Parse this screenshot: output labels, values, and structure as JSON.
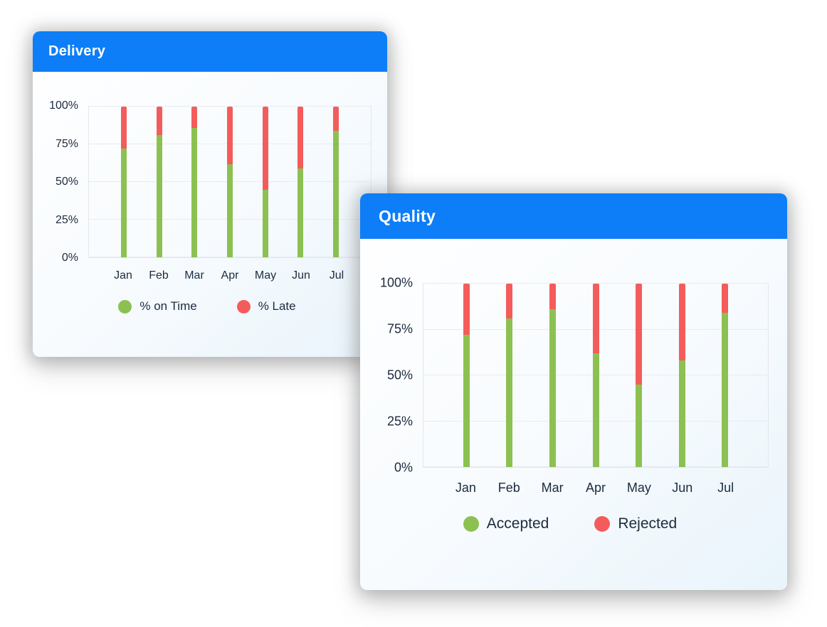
{
  "colors": {
    "header_blue": "#0d7ef7",
    "series_green": "#8cc152",
    "series_red": "#f45c5c",
    "text": "#1c2b3e"
  },
  "chart_data": [
    {
      "type": "bar",
      "stacked": true,
      "title": "Delivery",
      "categories": [
        "Jan",
        "Feb",
        "Mar",
        "Apr",
        "May",
        "Jun",
        "Jul"
      ],
      "series": [
        {
          "name": "% on Time",
          "color": "#8cc152",
          "values": [
            72,
            81,
            86,
            62,
            45,
            59,
            84
          ]
        },
        {
          "name": "% Late",
          "color": "#f45c5c",
          "values": [
            28,
            19,
            14,
            38,
            55,
            41,
            16
          ]
        }
      ],
      "xlabel": "",
      "ylabel": "",
      "ylim": [
        0,
        100
      ],
      "yticks": [
        "0%",
        "25%",
        "50%",
        "75%",
        "100%"
      ],
      "grid": true,
      "legend_position": "bottom"
    },
    {
      "type": "bar",
      "stacked": true,
      "title": "Quality",
      "categories": [
        "Jan",
        "Feb",
        "Mar",
        "Apr",
        "May",
        "Jun",
        "Jul"
      ],
      "series": [
        {
          "name": "Accepted",
          "color": "#8cc152",
          "values": [
            72,
            81,
            86,
            62,
            45,
            58,
            84
          ]
        },
        {
          "name": "Rejected",
          "color": "#f45c5c",
          "values": [
            28,
            19,
            14,
            38,
            55,
            42,
            16
          ]
        }
      ],
      "xlabel": "",
      "ylabel": "",
      "ylim": [
        0,
        100
      ],
      "yticks": [
        "0%",
        "25%",
        "50%",
        "75%",
        "100%"
      ],
      "grid": true,
      "legend_position": "bottom"
    }
  ]
}
